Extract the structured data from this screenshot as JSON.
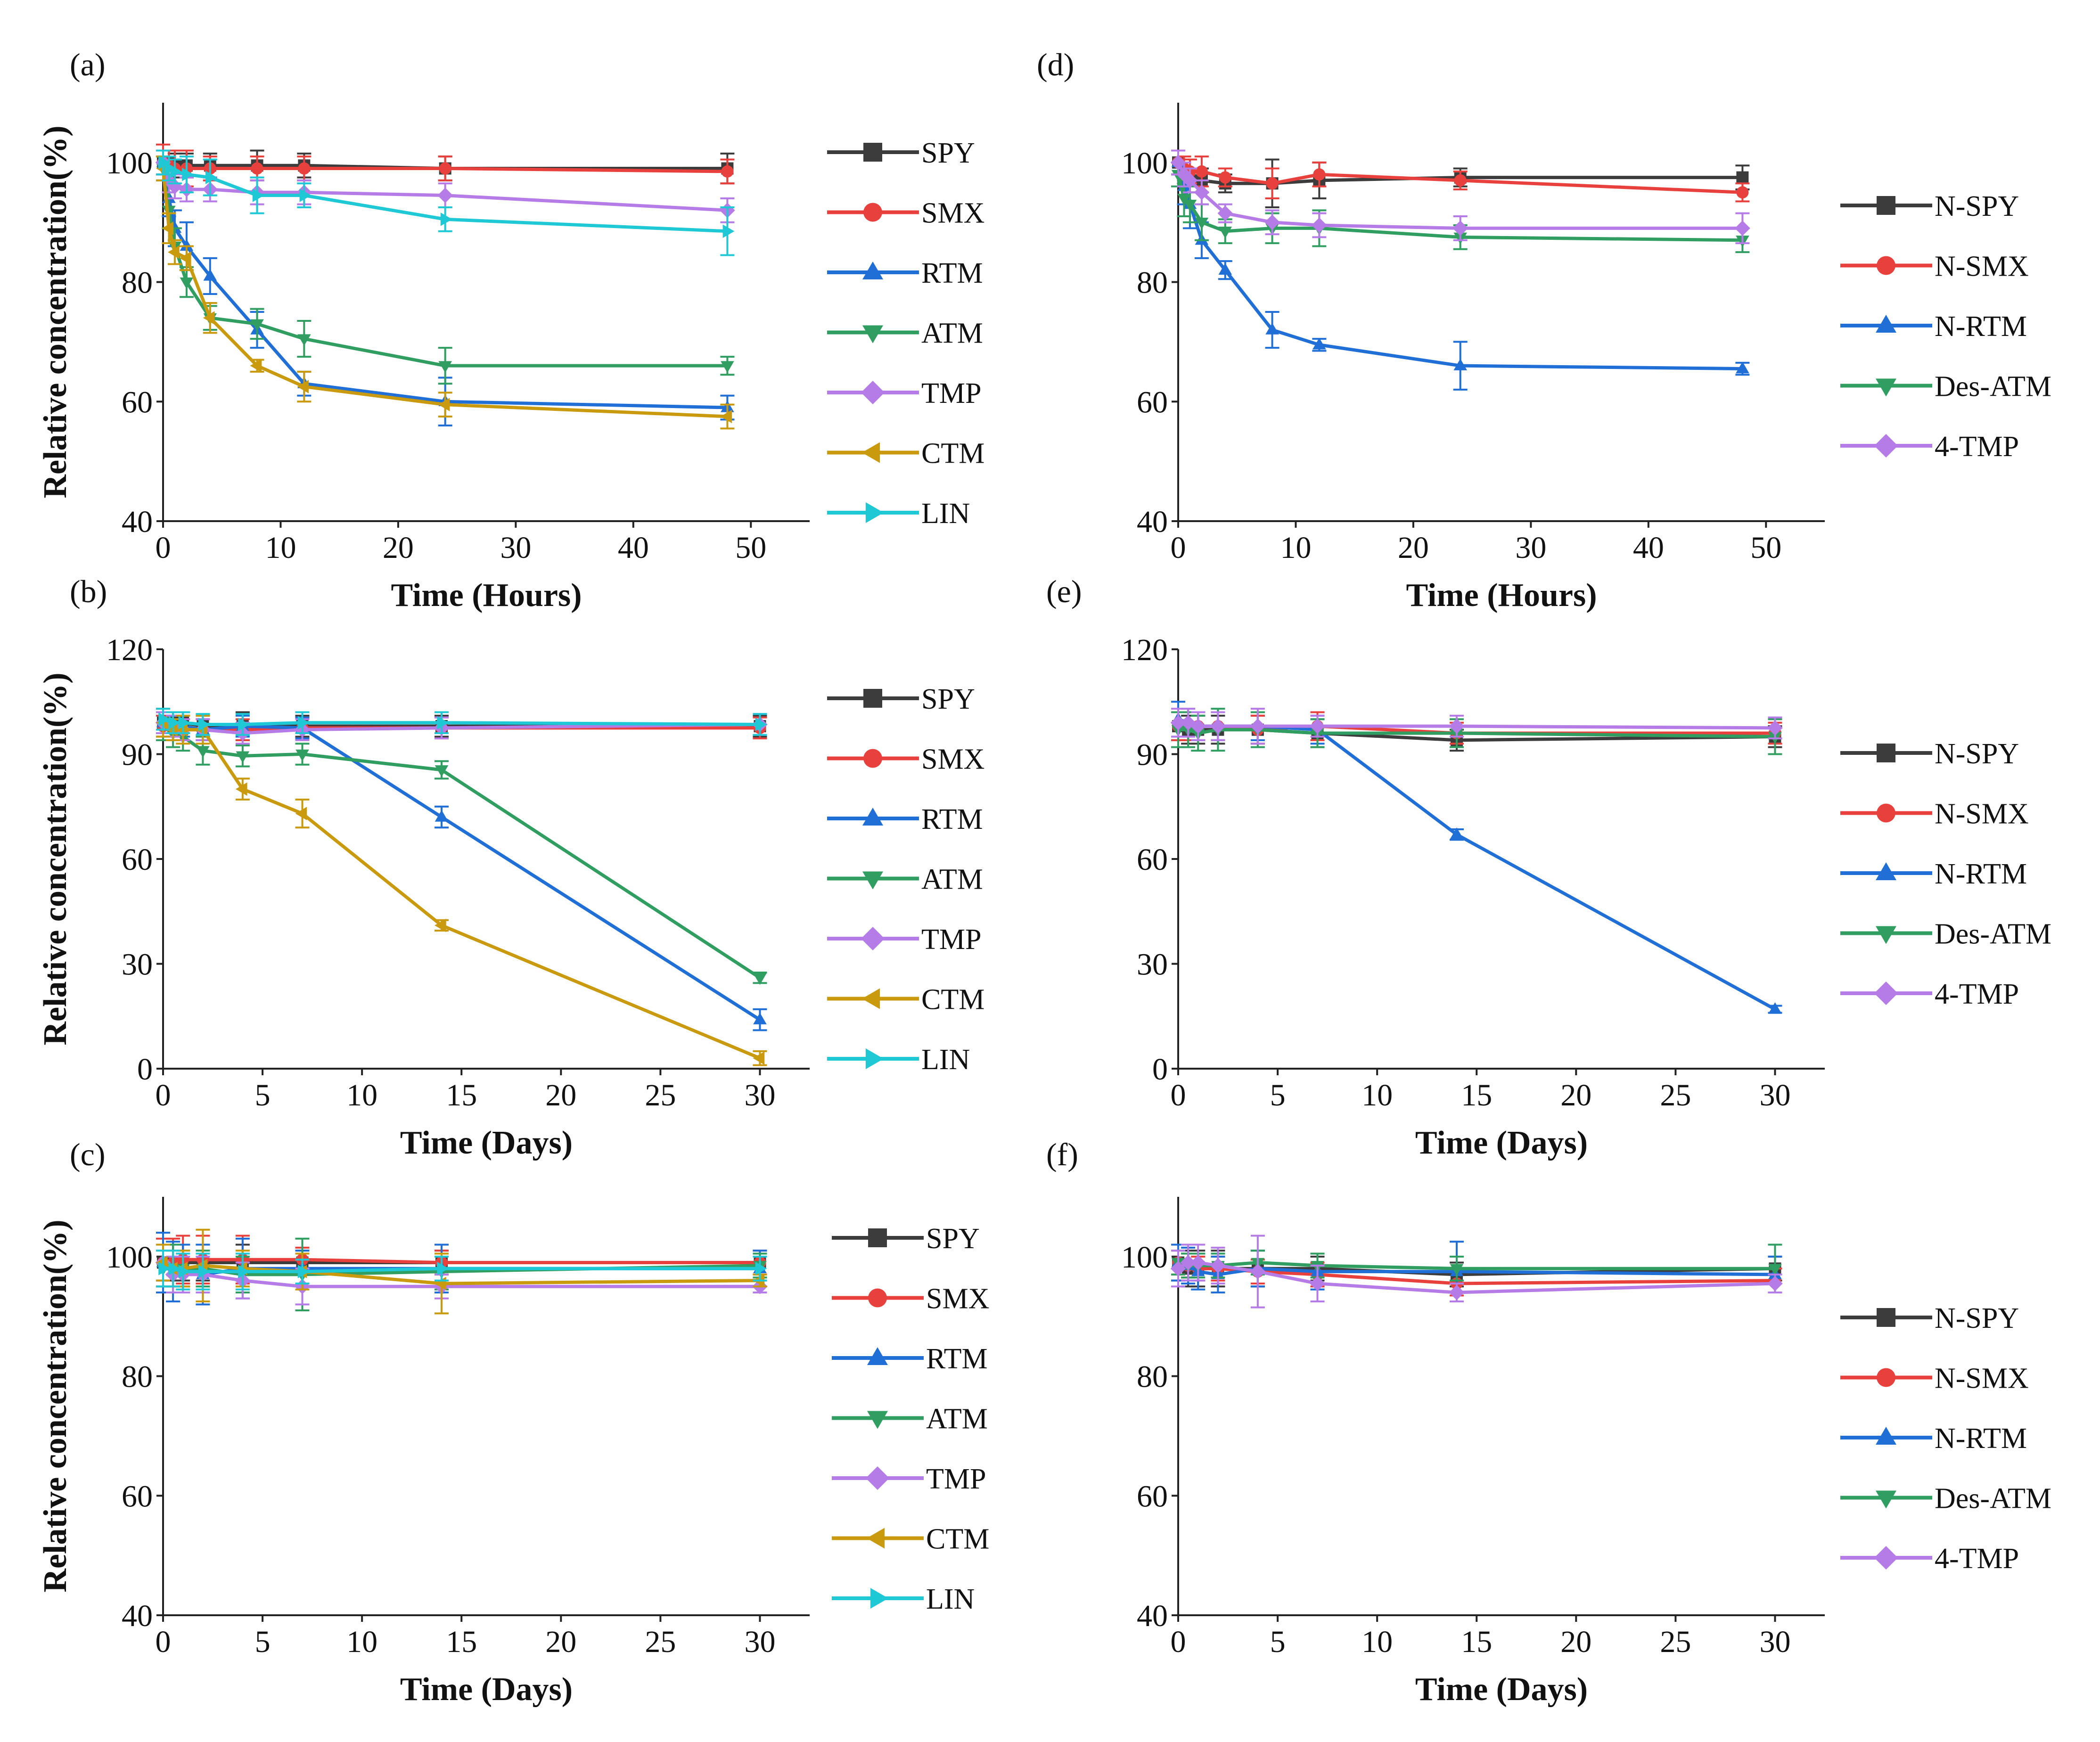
{
  "figure": {
    "colors": {
      "SPY": "#3c3c3c",
      "SMX": "#e8413d",
      "RTM": "#1f6fd6",
      "ATM": "#2f9e60",
      "TMP": "#b57be6",
      "CTM": "#c99a0e",
      "LIN": "#1ec8d4"
    }
  },
  "chart_data": [
    {
      "id": "a",
      "label": "(a)",
      "type": "line",
      "xlabel": "Time (Hours)",
      "ylabel": "Relative concentration(%)",
      "xlim": [
        0,
        55
      ],
      "ylim": [
        40,
        110
      ],
      "xticks": [
        0,
        10,
        20,
        30,
        40,
        50
      ],
      "yticks": [
        40,
        60,
        80,
        100
      ],
      "x": [
        0,
        0.5,
        1,
        2,
        4,
        8,
        12,
        24,
        48
      ],
      "series": [
        {
          "name": "SPY",
          "color_key": "SPY",
          "marker": "square",
          "values": [
            100,
            100,
            99.5,
            99.5,
            99.5,
            99.5,
            99.5,
            99,
            99
          ],
          "errors": [
            2,
            2,
            2,
            2,
            2,
            2.5,
            2,
            2,
            2.5
          ]
        },
        {
          "name": "SMX",
          "color_key": "SMX",
          "marker": "circle",
          "values": [
            100,
            99.5,
            99,
            99,
            99,
            99,
            99,
            99,
            98.5
          ],
          "errors": [
            3,
            2.5,
            3,
            3,
            2,
            2,
            2,
            2,
            2
          ]
        },
        {
          "name": "RTM",
          "color_key": "RTM",
          "marker": "triangle-up",
          "values": [
            100,
            94,
            89,
            86,
            81,
            72,
            63,
            60,
            59
          ],
          "errors": [
            2,
            3,
            3,
            4,
            3,
            3,
            2,
            4,
            2
          ]
        },
        {
          "name": "ATM",
          "color_key": "ATM",
          "marker": "triangle-down",
          "values": [
            99,
            92,
            86,
            80,
            74,
            73,
            70.5,
            66,
            66
          ],
          "errors": [
            2,
            3,
            3,
            2.5,
            2,
            2.5,
            3,
            3,
            1.5
          ]
        },
        {
          "name": "TMP",
          "color_key": "TMP",
          "marker": "diamond",
          "values": [
            100,
            97,
            96,
            95.5,
            95.5,
            95,
            95,
            94.5,
            92
          ],
          "errors": [
            2,
            2,
            2,
            2,
            2,
            2,
            2,
            2,
            2
          ]
        },
        {
          "name": "CTM",
          "color_key": "CTM",
          "marker": "triangle-left",
          "values": [
            99,
            89,
            85,
            84,
            74,
            66,
            62.5,
            59.5,
            57.5
          ],
          "errors": [
            2,
            2.5,
            2,
            2,
            2.5,
            1,
            2.5,
            2,
            2
          ]
        },
        {
          "name": "LIN",
          "color_key": "LIN",
          "marker": "triangle-right",
          "values": [
            100,
            99,
            98.5,
            98,
            97.5,
            94.5,
            94.5,
            90.5,
            88.5
          ],
          "errors": [
            2,
            2,
            2,
            3,
            3,
            3,
            2,
            2,
            4
          ]
        }
      ]
    },
    {
      "id": "b",
      "label": "(b)",
      "type": "line",
      "xlabel": "Time (Days)",
      "ylabel": "Relative concentration(%)",
      "xlim": [
        0,
        32.5
      ],
      "ylim": [
        0,
        120
      ],
      "xticks": [
        0,
        5,
        10,
        15,
        20,
        25,
        30
      ],
      "yticks": [
        0,
        30,
        60,
        90,
        120
      ],
      "x": [
        0,
        0.5,
        1,
        2,
        4,
        7,
        14,
        30
      ],
      "series": [
        {
          "name": "SPY",
          "color_key": "SPY",
          "marker": "square",
          "values": [
            99,
            99,
            99,
            98,
            98,
            98,
            98,
            98
          ],
          "errors": [
            4,
            3,
            3,
            3,
            4,
            3,
            3,
            3
          ]
        },
        {
          "name": "SMX",
          "color_key": "SMX",
          "marker": "circle",
          "values": [
            98,
            97,
            97,
            97,
            97,
            97.5,
            97.5,
            97.5
          ],
          "errors": [
            3,
            3,
            3,
            3,
            3,
            3,
            3,
            3
          ]
        },
        {
          "name": "RTM",
          "color_key": "RTM",
          "marker": "triangle-up",
          "values": [
            99,
            98,
            98,
            97,
            98,
            97.5,
            72,
            14
          ],
          "errors": [
            3,
            3,
            3,
            3,
            3,
            3,
            3,
            3
          ]
        },
        {
          "name": "ATM",
          "color_key": "ATM",
          "marker": "triangle-down",
          "values": [
            98,
            96,
            95,
            91,
            89.5,
            90,
            85.5,
            26
          ],
          "errors": [
            4,
            4,
            4,
            4,
            3,
            3,
            2.5,
            1.5
          ]
        },
        {
          "name": "TMP",
          "color_key": "TMP",
          "marker": "diamond",
          "values": [
            99,
            98,
            97,
            97,
            96,
            97,
            97.5,
            98.5
          ],
          "errors": [
            3,
            3,
            3,
            3,
            3,
            3,
            3,
            3
          ]
        },
        {
          "name": "CTM",
          "color_key": "CTM",
          "marker": "triangle-left",
          "values": [
            99,
            97,
            97,
            97,
            80,
            73,
            41,
            3
          ],
          "errors": [
            4,
            3,
            4,
            4,
            3,
            4,
            1.5,
            2
          ]
        },
        {
          "name": "LIN",
          "color_key": "LIN",
          "marker": "triangle-right",
          "values": [
            100,
            99,
            99,
            98.5,
            98.5,
            99,
            99,
            98.5
          ],
          "errors": [
            3,
            3,
            3,
            3,
            3,
            3,
            3,
            3
          ]
        }
      ]
    },
    {
      "id": "c",
      "label": "(c)",
      "type": "line",
      "xlabel": "Time (Days)",
      "ylabel": "Relative concentration(%)",
      "xlim": [
        0,
        32.5
      ],
      "ylim": [
        40,
        110
      ],
      "xticks": [
        0,
        5,
        10,
        15,
        20,
        25,
        30
      ],
      "yticks": [
        40,
        60,
        80,
        100
      ],
      "x": [
        0,
        0.5,
        1,
        2,
        4,
        7,
        14,
        30
      ],
      "series": [
        {
          "name": "SPY",
          "color_key": "SPY",
          "marker": "square",
          "values": [
            99,
            99,
            99,
            99,
            99,
            99,
            99,
            99
          ],
          "errors": [
            3,
            3,
            3,
            3,
            3,
            2,
            2,
            2
          ]
        },
        {
          "name": "SMX",
          "color_key": "SMX",
          "marker": "circle",
          "values": [
            99,
            99,
            99.5,
            99.5,
            99.5,
            99.5,
            99,
            99
          ],
          "errors": [
            4,
            4,
            4,
            4,
            4,
            2,
            2,
            2
          ]
        },
        {
          "name": "RTM",
          "color_key": "RTM",
          "marker": "triangle-up",
          "values": [
            99,
            97.5,
            98,
            97,
            98,
            98,
            98,
            98
          ],
          "errors": [
            5,
            5,
            4,
            5,
            5,
            3,
            4,
            3
          ]
        },
        {
          "name": "ATM",
          "color_key": "ATM",
          "marker": "triangle-down",
          "values": [
            98,
            98,
            98,
            98,
            97,
            97,
            97.5,
            98.5
          ],
          "errors": [
            3,
            4,
            3,
            3,
            3,
            6,
            3,
            2
          ]
        },
        {
          "name": "TMP",
          "color_key": "TMP",
          "marker": "diamond",
          "values": [
            99,
            97,
            97,
            97,
            96,
            95,
            95,
            95
          ],
          "errors": [
            3,
            3,
            3,
            3,
            3,
            3,
            2,
            1
          ]
        },
        {
          "name": "CTM",
          "color_key": "CTM",
          "marker": "triangle-left",
          "values": [
            99,
            98,
            98,
            98.5,
            98,
            97.5,
            95.5,
            96
          ],
          "errors": [
            3,
            3,
            3,
            6,
            3,
            3,
            5,
            1
          ]
        },
        {
          "name": "LIN",
          "color_key": "LIN",
          "marker": "triangle-right",
          "values": [
            98,
            98,
            97.5,
            97.5,
            97.5,
            97.5,
            98,
            98
          ],
          "errors": [
            3,
            3,
            3,
            3,
            3,
            2,
            2,
            2
          ]
        }
      ]
    },
    {
      "id": "d",
      "label": "(d)",
      "type": "line",
      "xlabel": "Time (Hours)",
      "ylabel": "",
      "xlim": [
        0,
        55
      ],
      "ylim": [
        40,
        110
      ],
      "xticks": [
        0,
        10,
        20,
        30,
        40,
        50
      ],
      "yticks": [
        40,
        60,
        80,
        100
      ],
      "x": [
        0,
        0.5,
        1,
        2,
        4,
        8,
        12,
        24,
        48
      ],
      "series": [
        {
          "name": "N-SPY",
          "color_key": "SPY",
          "marker": "square",
          "values": [
            100,
            98.5,
            97,
            97,
            96.5,
            96.5,
            97,
            97.5,
            97.5
          ],
          "errors": [
            2,
            2,
            2,
            2,
            1.5,
            4,
            3,
            1.5,
            2
          ]
        },
        {
          "name": "N-SMX",
          "color_key": "SMX",
          "marker": "circle",
          "values": [
            100,
            99,
            98.5,
            98.5,
            97.5,
            96.5,
            98,
            97,
            95
          ],
          "errors": [
            2,
            2,
            2,
            2.5,
            1.5,
            2.5,
            2,
            1.5,
            1.5
          ]
        },
        {
          "name": "N-RTM",
          "color_key": "RTM",
          "marker": "triangle-up",
          "values": [
            100,
            96,
            93,
            87,
            82,
            72,
            69.5,
            66,
            65.5
          ],
          "errors": [
            2,
            3,
            4,
            3,
            1.5,
            3,
            1,
            4,
            1
          ]
        },
        {
          "name": "Des-ATM",
          "color_key": "ATM",
          "marker": "triangle-down",
          "values": [
            98,
            94,
            93,
            90,
            88.5,
            89,
            89,
            87.5,
            87
          ],
          "errors": [
            2,
            3,
            3,
            3,
            2,
            2.5,
            3,
            2,
            2
          ]
        },
        {
          "name": "4-TMP",
          "color_key": "TMP",
          "marker": "diamond",
          "values": [
            100,
            98,
            97,
            95,
            91.5,
            90,
            89.5,
            89,
            89
          ],
          "errors": [
            2,
            2,
            2,
            2,
            1.5,
            2,
            2,
            2,
            2.5
          ]
        }
      ]
    },
    {
      "id": "e",
      "label": "(e)",
      "type": "line",
      "xlabel": "Time (Days)",
      "ylabel": "",
      "xlim": [
        0,
        32.5
      ],
      "ylim": [
        0,
        120
      ],
      "xticks": [
        0,
        5,
        10,
        15,
        20,
        25,
        30
      ],
      "yticks": [
        0,
        30,
        60,
        90,
        120
      ],
      "x": [
        0,
        0.5,
        1,
        2,
        4,
        7,
        14,
        30
      ],
      "series": [
        {
          "name": "N-SPY",
          "color_key": "SPY",
          "marker": "square",
          "values": [
            98,
            97,
            97,
            97,
            97,
            96,
            94,
            95
          ],
          "errors": [
            4,
            4,
            4,
            4,
            4,
            4,
            3,
            3
          ]
        },
        {
          "name": "N-SMX",
          "color_key": "SMX",
          "marker": "circle",
          "values": [
            98,
            98,
            98,
            98,
            97,
            98,
            96,
            96
          ],
          "errors": [
            4,
            4,
            4,
            4,
            4,
            4,
            3,
            3
          ]
        },
        {
          "name": "N-RTM",
          "color_key": "RTM",
          "marker": "triangle-up",
          "values": [
            100,
            99,
            98,
            98,
            98,
            97,
            67,
            17
          ],
          "errors": [
            5,
            4,
            4,
            4,
            4,
            4,
            1.5,
            1
          ]
        },
        {
          "name": "Des-ATM",
          "color_key": "ATM",
          "marker": "triangle-down",
          "values": [
            97,
            97,
            96,
            97,
            97,
            96,
            96,
            95
          ],
          "errors": [
            5,
            5,
            5,
            6,
            5,
            4,
            4,
            5
          ]
        },
        {
          "name": "4-TMP",
          "color_key": "TMP",
          "marker": "diamond",
          "values": [
            99,
            99,
            98,
            98,
            98,
            98,
            98,
            97.5
          ],
          "errors": [
            4,
            4,
            4,
            4,
            5,
            3,
            3,
            3
          ]
        }
      ]
    },
    {
      "id": "f",
      "label": "(f)",
      "type": "line",
      "xlabel": "Time (Days)",
      "ylabel": "",
      "xlim": [
        0,
        32.5
      ],
      "ylim": [
        40,
        110
      ],
      "xticks": [
        0,
        5,
        10,
        15,
        20,
        25,
        30
      ],
      "yticks": [
        40,
        60,
        80,
        100
      ],
      "x": [
        0,
        0.5,
        1,
        2,
        4,
        7,
        14,
        30
      ],
      "series": [
        {
          "name": "N-SPY",
          "color_key": "SPY",
          "marker": "square",
          "values": [
            99,
            98,
            98,
            98,
            98,
            98,
            97,
            98
          ],
          "errors": [
            3,
            3,
            3,
            3,
            3,
            2,
            2,
            2
          ]
        },
        {
          "name": "N-SMX",
          "color_key": "SMX",
          "marker": "circle",
          "values": [
            99,
            98.5,
            98,
            98,
            97.5,
            97,
            95.5,
            96
          ],
          "errors": [
            2,
            2,
            2,
            2,
            2,
            2,
            2,
            2
          ]
        },
        {
          "name": "N-RTM",
          "color_key": "RTM",
          "marker": "triangle-up",
          "values": [
            99,
            98.5,
            97.5,
            97,
            98,
            97.5,
            97.5,
            97
          ],
          "errors": [
            3,
            3,
            3,
            3,
            3,
            3,
            5,
            3
          ]
        },
        {
          "name": "Des-ATM",
          "color_key": "ATM",
          "marker": "triangle-down",
          "values": [
            99,
            98.5,
            98.5,
            98.5,
            99,
            98.5,
            98,
            98
          ],
          "errors": [
            2,
            2,
            2,
            2,
            2,
            2,
            2,
            4
          ]
        },
        {
          "name": "4-TMP",
          "color_key": "TMP",
          "marker": "diamond",
          "values": [
            98,
            99,
            99,
            98.5,
            97.5,
            95.5,
            94,
            95.5
          ],
          "errors": [
            3,
            3,
            3,
            3,
            6,
            3,
            1.5,
            1.5
          ]
        }
      ]
    }
  ]
}
